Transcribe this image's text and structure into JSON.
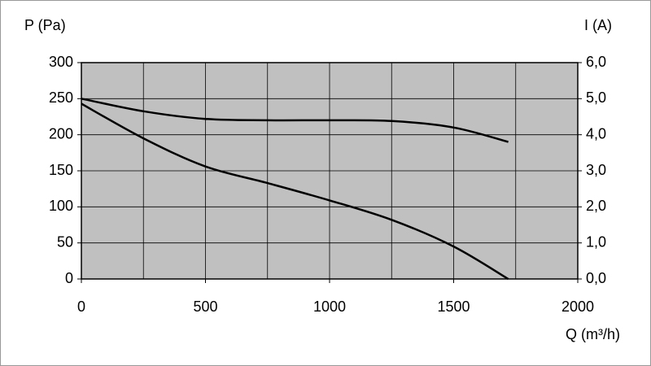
{
  "chart_data": {
    "type": "line",
    "ylabel": "P (Pa)",
    "y2label": "I (A)",
    "xlabel": "Q (m³/h)",
    "x": [
      0,
      250,
      500,
      750,
      1000,
      1250,
      1500,
      1720
    ],
    "series": [
      {
        "color": "#000000",
        "values": [
          243,
          195,
          156,
          133,
          109,
          82,
          45,
          0
        ]
      },
      {
        "color": "#000000",
        "axis": "y2",
        "values": [
          5.0,
          4.65,
          4.44,
          4.4,
          4.4,
          4.38,
          4.2,
          3.8
        ]
      }
    ],
    "xlim": [
      0,
      2000
    ],
    "xticks": [
      0,
      500,
      1000,
      1500,
      2000
    ],
    "xminor_ticks": [
      250,
      750,
      1250,
      1750
    ],
    "ylim": [
      0,
      300
    ],
    "yticks": [
      0,
      50,
      100,
      150,
      200,
      250,
      300
    ],
    "y2lim": [
      0,
      6
    ],
    "y2ticks": [
      {
        "value": 0,
        "label": "0,0"
      },
      {
        "value": 1,
        "label": "1,0"
      },
      {
        "value": 2,
        "label": "2,0"
      },
      {
        "value": 3,
        "label": "3,0"
      },
      {
        "value": 4,
        "label": "4,0"
      },
      {
        "value": 5,
        "label": "5,0"
      },
      {
        "value": 6,
        "label": "6,0"
      }
    ],
    "grid": true,
    "plot_background": "#c0c0c0"
  }
}
